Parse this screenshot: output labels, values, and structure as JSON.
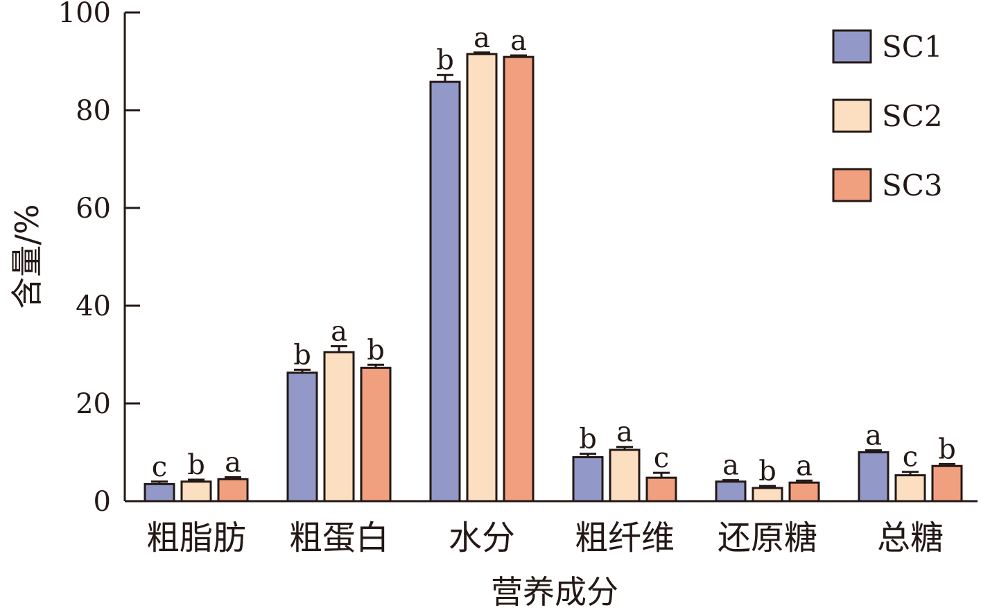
{
  "chart_data": {
    "type": "bar",
    "xlabel": "营养成分",
    "ylabel": "含量/%",
    "ylim": [
      0,
      100
    ],
    "yticks": [
      0,
      20,
      40,
      60,
      80,
      100
    ],
    "categories": [
      "粗脂肪",
      "粗蛋白",
      "水分",
      "粗纤维",
      "还原糖",
      "总糖"
    ],
    "legend_position": "top-right",
    "grid": false,
    "series": [
      {
        "name": "SC1",
        "color": "#9299c8",
        "values": [
          3.5,
          26.3,
          85.8,
          9.0,
          4.0,
          10.0
        ],
        "errors": [
          0.5,
          0.6,
          1.4,
          0.7,
          0.3,
          0.4
        ],
        "labels": [
          "c",
          "b",
          "b",
          "b",
          "a",
          "a"
        ]
      },
      {
        "name": "SC2",
        "color": "#fbdfc0",
        "values": [
          4.0,
          30.5,
          91.5,
          10.5,
          2.7,
          5.3
        ],
        "errors": [
          0.4,
          1.2,
          0.3,
          0.6,
          0.4,
          0.7
        ],
        "labels": [
          "b",
          "a",
          "a",
          "a",
          "b",
          "c"
        ]
      },
      {
        "name": "SC3",
        "color": "#f0a07e",
        "values": [
          4.5,
          27.3,
          90.9,
          4.8,
          3.8,
          7.2
        ],
        "errors": [
          0.4,
          0.6,
          0.3,
          1.0,
          0.4,
          0.4
        ],
        "labels": [
          "a",
          "b",
          "a",
          "c",
          "a",
          "b"
        ]
      }
    ]
  }
}
